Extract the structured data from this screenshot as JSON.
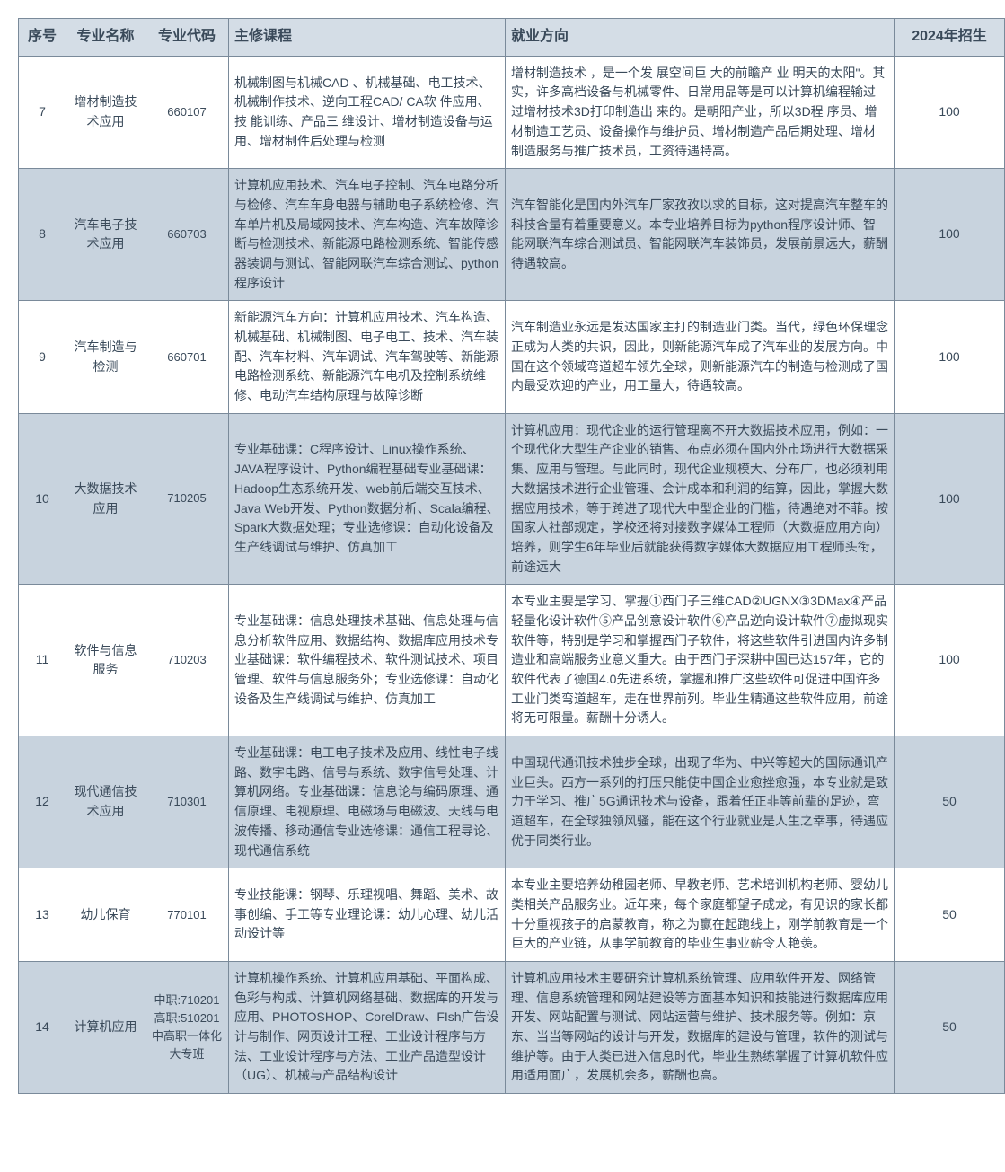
{
  "colors": {
    "header_bg": "#d4dde6",
    "even_bg": "#c8d3de",
    "odd_bg": "#ffffff",
    "border": "#7a8a9a",
    "text": "#3a4a5a"
  },
  "columns": [
    {
      "key": "seq",
      "label": "序号",
      "class": "col-seq"
    },
    {
      "key": "name",
      "label": "专业名称",
      "class": "col-name"
    },
    {
      "key": "code",
      "label": "专业代码",
      "class": "col-code"
    },
    {
      "key": "course",
      "label": "主修课程",
      "class": "col-course"
    },
    {
      "key": "job",
      "label": "就业方向",
      "class": "col-job"
    },
    {
      "key": "enroll",
      "label": "2024年招生",
      "class": "col-enroll"
    }
  ],
  "rows": [
    {
      "seq": "7",
      "name": "增材制造技术应用",
      "code": "660107",
      "course": "机械制图与机械CAD 、机械基础、电工技术、机械制作技术、逆向工程CAD/ CA软 件应用、技 能训练、产品三 维设计、增材制造设备与运用、增材制件后处理与检测",
      "job": "增材制造技术 ，是一个发 展空间巨 大的前瞻产 业  明天的太阳\"。其实，许多高档设备与机械零件、日常用品等是可以计算机编程输过 过增材技术3D打印制造出   来的。是朝阳产业，所以3D程 序员、增材制造工艺员、设备操作与维护员、增材制造产品后期处理、增材 制造服务与推广技术员，工资待遇特高。",
      "enroll": "100"
    },
    {
      "seq": "8",
      "name": "汽车电子技术应用",
      "code": "660703",
      "course": "计算机应用技术、汽车电子控制、汽车电路分析与检修、汽车车身电器与辅助电子系统检修、汽车单片机及局域网技术、汽车构造、汽车故障诊断与检测技术、新能源电路检测系统、智能传感器装调与测试、智能网联汽车综合测试、python程序设计",
      "job": "汽车智能化是国内外汽车厂家孜孜以求的目标，这对提高汽车整车的科技含量有着重要意义。本专业培养目标为python程序设计师、智能网联汽车综合测试员、智能网联汽车装饰员，发展前景远大，薪酬待遇较高。",
      "enroll": "100"
    },
    {
      "seq": "9",
      "name": "汽车制造与检测",
      "code": "660701",
      "course": "新能源汽车方向：计算机应用技术、汽车构造、机械基础、机械制图、电子电工、技术、汽车装配、汽车材料、汽车调试、汽车驾驶等、新能源电路检测系统、新能源汽车电机及控制系统维修、电动汽车结构原理与故障诊断",
      "job": "汽车制造业永远是发达国家主打的制造业门类。当代，绿色环保理念正成为人类的共识，因此，则新能源汽车成了汽车业的发展方向。中国在这个领域弯道超车领先全球，则新能源汽车的制造与检测成了国内最受欢迎的产业，用工量大，待遇较高。",
      "enroll": "100"
    },
    {
      "seq": "10",
      "name": "大数据技术应用",
      "code": "710205",
      "course": "专业基础课：C程序设计、Linux操作系统、JAVA程序设计、Python编程基础专业基础课：Hadoop生态系统开发、web前后端交互技术、Java Web开发、Python数据分析、Scala编程、Spark大数据处理；专业选修课：自动化设备及生产线调试与维护、仿真加工",
      "job": "计算机应用：现代企业的运行管理离不开大数据技术应用，例如：一个现代化大型生产企业的销售、布点必须在国内外市场进行大数据采集、应用与管理。与此同时，现代企业规模大、分布广，也必须利用大数据技术进行企业管理、会计成本和利润的结算，因此，掌握大数据应用技术，等于跨进了现代大中型企业的门槛，待遇绝对不菲。按国家人社部规定，学校还将对接数字媒体工程师（大数据应用方向）培养，则学生6年毕业后就能获得数字媒体大数据应用工程师头衔，前途远大",
      "enroll": "100"
    },
    {
      "seq": "11",
      "name": "软件与信息服务",
      "code": "710203",
      "course": "专业基础课：信息处理技术基础、信息处理与信息分析软件应用、数据结构、数据库应用技术专业基础课：软件编程技术、软件测试技术、项目管理、软件与信息服务外；专业选修课：自动化设备及生产线调试与维护、仿真加工",
      "job": "本专业主要是学习、掌握①西门子三维CAD②UGNX③3DMax④产品轻量化设计软件⑤产品创意设计软件⑥产品逆向设计软件⑦虚拟现实软件等，特别是学习和掌握西门子软件，将这些软件引进国内许多制造业和高端服务业意义重大。由于西门子深耕中国已达157年，它的软件代表了德国4.0先进系统，掌握和推广这些软件可促进中国许多工业门类弯道超车，走在世界前列。毕业生精通这些软件应用，前途将无可限量。薪酬十分诱人。",
      "enroll": "100"
    },
    {
      "seq": "12",
      "name": "现代通信技术应用",
      "code": "710301",
      "course": "专业基础课：电工电子技术及应用、线性电子线路、数字电路、信号与系统、数字信号处理、计算机网络。专业基础课：信息论与编码原理、通信原理、电视原理、电磁场与电磁波、天线与电波传播、移动通信专业选修课：通信工程导论、现代通信系统",
      "job": "中国现代通讯技术独步全球，出现了华为、中兴等超大的国际通讯产业巨头。西方一系列的打压只能使中国企业愈挫愈强，本专业就是致力于学习、推广5G通讯技术与设备，跟着任正非等前辈的足迹，弯道超车，在全球独领风骚，能在这个行业就业是人生之幸事，待遇应优于同类行业。",
      "enroll": "50"
    },
    {
      "seq": "13",
      "name": "幼儿保育",
      "code": "770101",
      "course": "专业技能课：钢琴、乐理视唱、舞蹈、美术、故事创编、手工等专业理论课：幼儿心理、幼儿活动设计等",
      "job": "本专业主要培养幼稚园老师、早教老师、艺术培训机构老师、婴幼儿类相关产品服务业。近年来，每个家庭都望子成龙，有见识的家长都十分重视孩子的启蒙教育，称之为赢在起跑线上，刚学前教育是一个巨大的产业链，从事学前教育的毕业生事业薪令人艳羡。",
      "enroll": "50"
    },
    {
      "seq": "14",
      "name": "计算机应用",
      "code": "中职:710201高职:510201中高职一体化大专班",
      "course": "计算机操作系统、计算机应用基础、平面构成、色彩与构成、计算机网络基础、数据库的开发与应用、PHOTOSHOP、CorelDraw、FIsh广告设计与制作、网页设计工程、工业设计程序与方法、工业设计程序与方法、工业产品造型设计（UG）、机械与产品结构设计",
      "job": "计算机应用技术主要研究计算机系统管理、应用软件开发、网络管理、信息系统管理和网站建设等方面基本知识和技能进行数据库应用开发、网站配置与测试、网站运营与维护、技术服务等。例如：京东、当当等网站的设计与开发，数据库的建设与管理，软件的测试与维护等。由于人类已进入信息时代，毕业生熟练掌握了计算机软件应用适用面广，发展机会多，薪酬也高。",
      "enroll": "50"
    }
  ]
}
